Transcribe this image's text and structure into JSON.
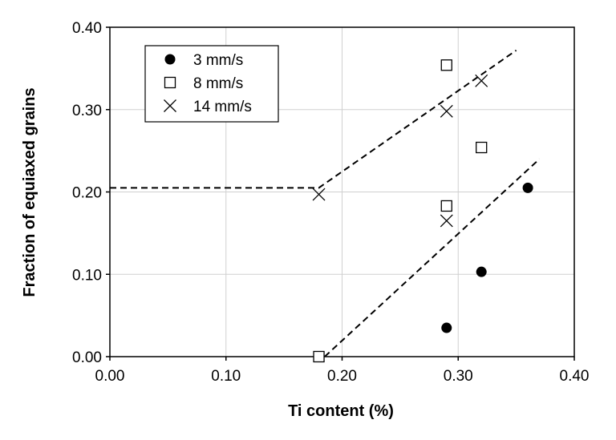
{
  "chart_data": {
    "type": "scatter",
    "xlabel": "Ti content (%)",
    "ylabel": "Fraction of equiaxed grains",
    "xlim": [
      0,
      0.4
    ],
    "ylim": [
      0,
      0.4
    ],
    "x_ticks": [
      "0.00",
      "0.10",
      "0.20",
      "0.30",
      "0.40"
    ],
    "y_ticks": [
      "0.00",
      "0.10",
      "0.20",
      "0.30",
      "0.40"
    ],
    "grid": true,
    "legend_position": "top-left",
    "series": [
      {
        "name": "3 mm/s",
        "marker": "filled-circle",
        "points": [
          [
            0.29,
            0.035
          ],
          [
            0.32,
            0.103
          ],
          [
            0.36,
            0.205
          ]
        ]
      },
      {
        "name": "8 mm/s",
        "marker": "open-square",
        "points": [
          [
            0.18,
            0.0
          ],
          [
            0.29,
            0.183
          ],
          [
            0.29,
            0.354
          ],
          [
            0.32,
            0.254
          ]
        ]
      },
      {
        "name": "14 mm/s",
        "marker": "cross",
        "points": [
          [
            0.18,
            0.197
          ],
          [
            0.29,
            0.165
          ],
          [
            0.29,
            0.298
          ],
          [
            0.32,
            0.335
          ]
        ]
      }
    ],
    "trend_lines": [
      {
        "style": "dashed",
        "points": [
          [
            0.0,
            0.205
          ],
          [
            0.18,
            0.205
          ],
          [
            0.35,
            0.372
          ]
        ]
      },
      {
        "style": "dashed",
        "points": [
          [
            0.185,
            0.0
          ],
          [
            0.37,
            0.24
          ]
        ]
      }
    ]
  }
}
